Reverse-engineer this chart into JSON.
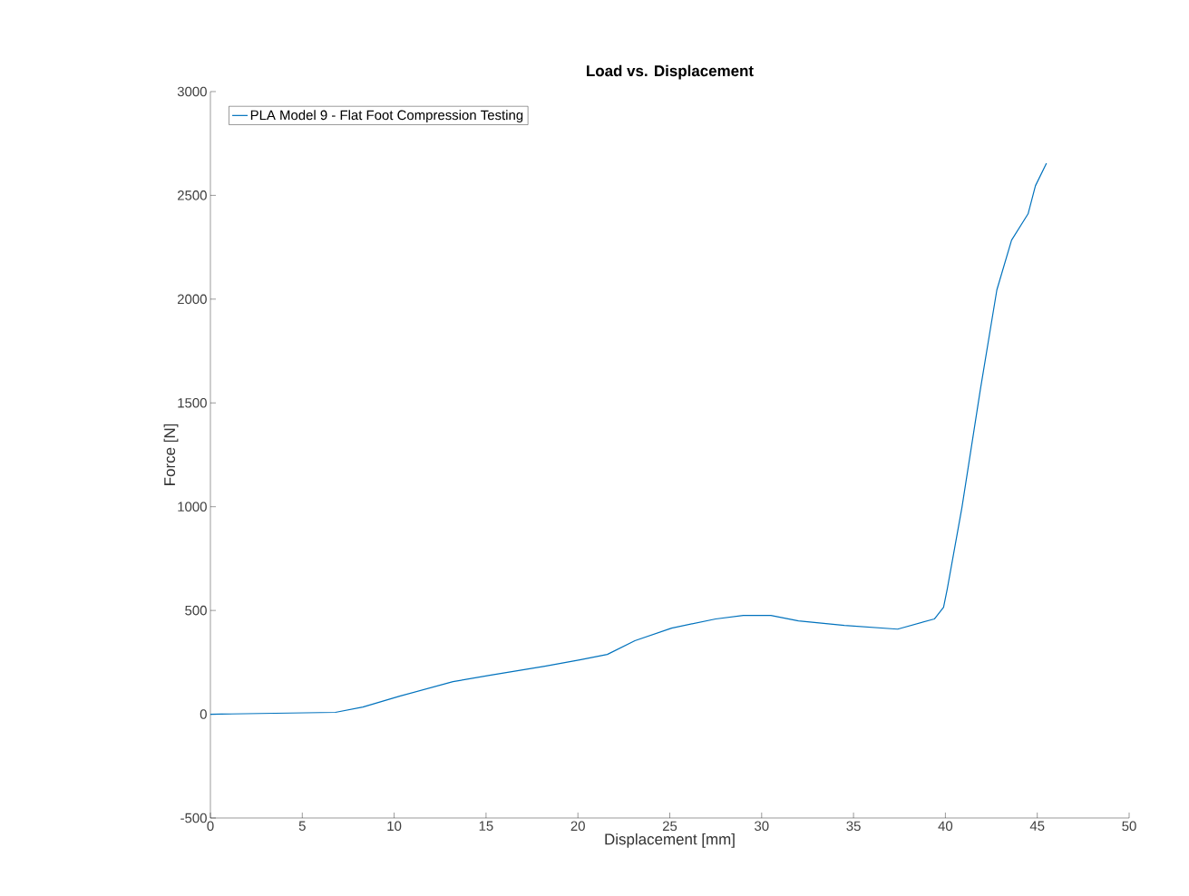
{
  "chart_data": {
    "type": "line",
    "title": "Load vs. Displacement",
    "xlabel": "Displacement [mm]",
    "ylabel": "Force [N]",
    "series": [
      {
        "name": "PLA Model 9 - Flat Foot Compression Testing",
        "color": "#0072bd",
        "x": [
          0,
          6.8,
          8.3,
          10.3,
          13.2,
          15.2,
          18.2,
          20.1,
          21.6,
          23.1,
          25.1,
          27.5,
          29.0,
          30.5,
          32.0,
          34.5,
          37.4,
          39.4,
          39.9,
          40.1,
          40.9,
          41.9,
          42.8,
          43.6,
          44.5,
          44.9,
          45.5
        ],
        "values": [
          0,
          9,
          35,
          87,
          157,
          188,
          231,
          262,
          288,
          354,
          415,
          459,
          476,
          476,
          450,
          428,
          410,
          459,
          515,
          603,
          996,
          1563,
          2044,
          2284,
          2411,
          2546,
          2655
        ]
      }
    ],
    "xlim": [
      0,
      50
    ],
    "ylim": [
      -500,
      3000
    ],
    "xticks": [
      0,
      5,
      10,
      15,
      20,
      25,
      30,
      35,
      40,
      45,
      50
    ],
    "yticks": [
      -500,
      0,
      500,
      1000,
      1500,
      2000,
      2500,
      3000
    ],
    "legend": "top left",
    "grid": false,
    "marker": "none",
    "line_style": "solid"
  }
}
